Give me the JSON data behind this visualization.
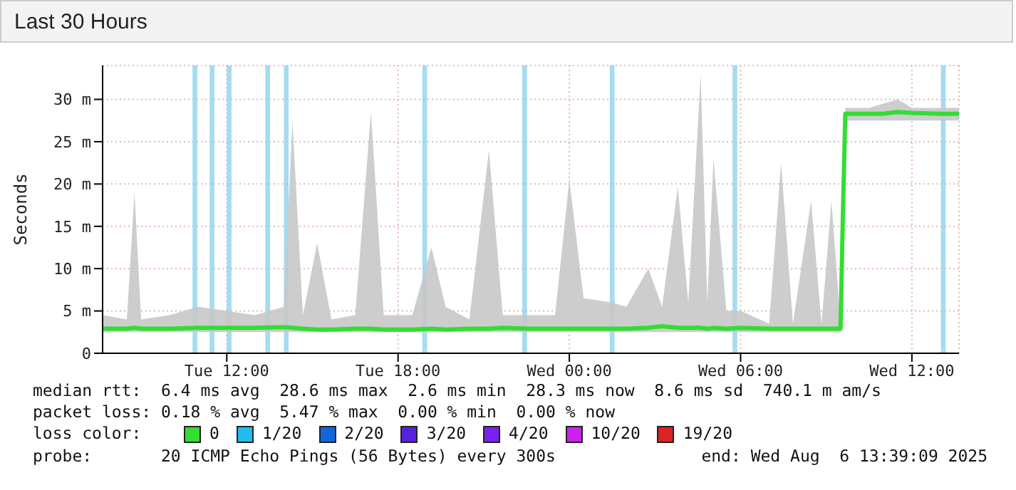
{
  "chart_data": {
    "type": "line",
    "title": "Last 30 Hours",
    "ylabel": "Seconds",
    "x": [
      "2025-08-05T07:40",
      "2025-08-05T08:30",
      "2025-08-05T08:46",
      "2025-08-05T09:00",
      "2025-08-05T10:00",
      "2025-08-05T11:00",
      "2025-08-05T12:00",
      "2025-08-05T13:00",
      "2025-08-05T14:00",
      "2025-08-05T14:18",
      "2025-08-05T14:40",
      "2025-08-05T15:10",
      "2025-08-05T15:40",
      "2025-08-05T16:30",
      "2025-08-05T17:03",
      "2025-08-05T17:30",
      "2025-08-05T18:30",
      "2025-08-05T19:10",
      "2025-08-05T19:40",
      "2025-08-05T20:30",
      "2025-08-05T21:11",
      "2025-08-05T21:40",
      "2025-08-05T22:30",
      "2025-08-05T23:30",
      "2025-08-06T00:00",
      "2025-08-06T00:30",
      "2025-08-06T01:30",
      "2025-08-06T02:00",
      "2025-08-06T02:46",
      "2025-08-06T03:15",
      "2025-08-06T03:48",
      "2025-08-06T04:10",
      "2025-08-06T04:36",
      "2025-08-06T04:50",
      "2025-08-06T05:03",
      "2025-08-06T05:30",
      "2025-08-06T06:00",
      "2025-08-06T07:00",
      "2025-08-06T07:25",
      "2025-08-06T07:50",
      "2025-08-06T08:28",
      "2025-08-06T08:50",
      "2025-08-06T09:11",
      "2025-08-06T09:30",
      "2025-08-06T09:35",
      "2025-08-06T09:40",
      "2025-08-06T10:30",
      "2025-08-06T11:00",
      "2025-08-06T11:30",
      "2025-08-06T12:00",
      "2025-08-06T13:00",
      "2025-08-06T13:39"
    ],
    "series": [
      {
        "color": "#33dd33",
        "values": [
          2.9,
          2.9,
          3,
          2.9,
          2.9,
          3,
          3,
          3,
          3.1,
          3,
          2.9,
          2.8,
          2.8,
          2.9,
          2.9,
          2.8,
          2.8,
          2.9,
          2.8,
          2.9,
          2.9,
          3,
          2.9,
          2.9,
          2.9,
          2.9,
          2.9,
          2.9,
          3,
          3.2,
          3,
          3,
          3,
          2.9,
          3,
          2.9,
          3,
          2.9,
          2.9,
          2.9,
          2.9,
          2.9,
          2.9,
          2.9,
          16.5,
          28.3,
          28.3,
          28.3,
          28.5,
          28.4,
          28.3,
          28.3
        ],
        "lower": [
          2.5,
          2.5,
          2.5,
          2.5,
          2.5,
          2.5,
          2.5,
          2.5,
          2.5,
          2.5,
          2.5,
          2.5,
          2.5,
          2.5,
          2.5,
          2.5,
          2.5,
          2.5,
          2.5,
          2.5,
          2.5,
          2.5,
          2.5,
          2.5,
          2.5,
          2.5,
          2.5,
          2.5,
          2.5,
          2.5,
          2.5,
          2.5,
          2.5,
          2.5,
          2.5,
          2.5,
          2.5,
          2.5,
          2.5,
          2.5,
          2.5,
          2.5,
          2.5,
          2.5,
          16.5,
          27.5,
          27.5,
          27.5,
          27.5,
          27.5,
          27.5,
          27.5
        ],
        "upper": [
          4.5,
          4,
          19,
          4,
          4.5,
          5.5,
          5,
          4.5,
          5.5,
          27.5,
          4.5,
          13,
          4,
          4.5,
          28.5,
          4.5,
          4.5,
          12.5,
          5.5,
          4,
          24,
          4.5,
          4.5,
          4.5,
          20.5,
          6.5,
          6,
          5.5,
          10,
          5.5,
          19.7,
          6,
          33,
          6,
          23,
          5,
          5,
          3.5,
          22.5,
          3.5,
          18,
          3.5,
          18,
          3.5,
          16.5,
          29,
          29,
          29.5,
          30,
          29,
          29,
          29
        ]
      }
    ],
    "bands": [
      {
        "axis": "x",
        "from": "2025-08-05T10:48",
        "to": "2025-08-05T10:58",
        "color": "#8fd3ee"
      },
      {
        "axis": "x",
        "from": "2025-08-05T11:24",
        "to": "2025-08-05T11:34",
        "color": "#8fd3ee"
      },
      {
        "axis": "x",
        "from": "2025-08-05T12:00",
        "to": "2025-08-05T12:10",
        "color": "#8fd3ee"
      },
      {
        "axis": "x",
        "from": "2025-08-05T13:21",
        "to": "2025-08-05T13:31",
        "color": "#8fd3ee"
      },
      {
        "axis": "x",
        "from": "2025-08-05T14:00",
        "to": "2025-08-05T14:10",
        "color": "#8fd3ee"
      },
      {
        "axis": "x",
        "from": "2025-08-05T18:51",
        "to": "2025-08-05T19:01",
        "color": "#8fd3ee"
      },
      {
        "axis": "x",
        "from": "2025-08-05T22:21",
        "to": "2025-08-05T22:31",
        "color": "#8fd3ee"
      },
      {
        "axis": "x",
        "from": "2025-08-06T01:25",
        "to": "2025-08-06T01:35",
        "color": "#8fd3ee"
      },
      {
        "axis": "x",
        "from": "2025-08-06T05:43",
        "to": "2025-08-06T05:53",
        "color": "#8fd3ee"
      },
      {
        "axis": "x",
        "from": "2025-08-06T13:01",
        "to": "2025-08-06T13:11",
        "color": "#8fd3ee"
      }
    ],
    "xlim": [
      "2025-08-05T07:39",
      "2025-08-06T13:39"
    ],
    "xticks": [
      {
        "value": "2025-08-05T12:00",
        "label": "Tue 12:00"
      },
      {
        "value": "2025-08-05T18:00",
        "label": "Tue 18:00"
      },
      {
        "value": "2025-08-06T00:00",
        "label": "Wed 00:00"
      },
      {
        "value": "2025-08-06T06:00",
        "label": "Wed 06:00"
      },
      {
        "value": "2025-08-06T12:00",
        "label": "Wed 12:00"
      }
    ],
    "ylim": [
      0,
      34
    ],
    "yticks": [
      0,
      {
        "value": 5,
        "label": "5 m"
      },
      {
        "value": 10,
        "label": "10 m"
      },
      {
        "value": 15,
        "label": "15 m"
      },
      {
        "value": 20,
        "label": "20 m"
      },
      {
        "value": 25,
        "label": "25 m"
      },
      {
        "value": 30,
        "label": "30 m"
      }
    ],
    "grid": true,
    "legend": false,
    "marker": "none",
    "line_style": "solid",
    "annotations": [
      "median rtt:  6.4 ms avg  28.6 ms max  2.6 ms min  28.3 ms now  8.6 ms sd  740.1 m am/s",
      "packet loss: 0.18 % avg  5.47 % max  0.00 % min  0.00 % now",
      "loss color:",
      "0",
      "1/20",
      "2/20",
      "3/20",
      "4/20",
      "10/20",
      "19/20",
      "probe:       20 ICMP Echo Pings (56 Bytes) every 300s",
      "end: Wed Aug  6 13:39:09 2025"
    ]
  }
}
